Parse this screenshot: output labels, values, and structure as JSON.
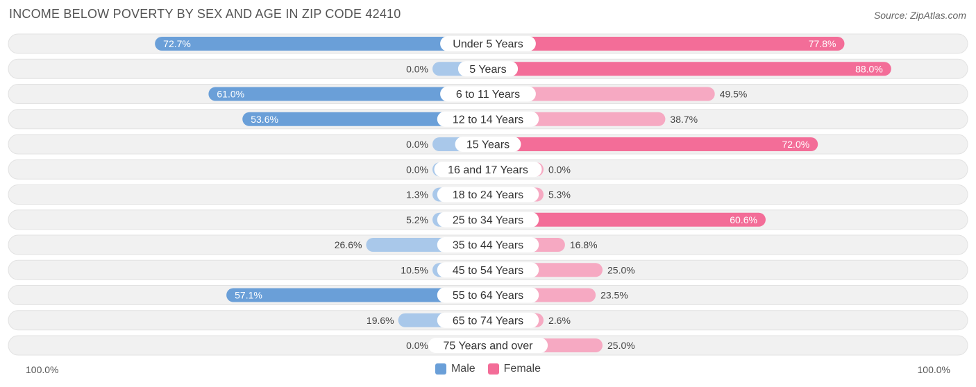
{
  "header": {
    "title": "INCOME BELOW POVERTY BY SEX AND AGE IN ZIP CODE 42410",
    "source": "Source: ZipAtlas.com"
  },
  "axis": {
    "left_label": "100.0%",
    "right_label": "100.0%"
  },
  "legend": {
    "male_label": "Male",
    "female_label": "Female"
  },
  "colors": {
    "male_strong": "#6a9fd8",
    "male_light": "#a9c8ea",
    "female_strong": "#f36d98",
    "female_light": "#f6a9c2",
    "track": "#f1f1f1"
  },
  "chart_data": {
    "type": "bar",
    "title": "INCOME BELOW POVERTY BY SEX AND AGE IN ZIP CODE 42410",
    "orientation": "horizontal-diverging",
    "xlim": [
      -100,
      100
    ],
    "categories": [
      "Under 5 Years",
      "5 Years",
      "6 to 11 Years",
      "12 to 14 Years",
      "15 Years",
      "16 and 17 Years",
      "18 to 24 Years",
      "25 to 34 Years",
      "35 to 44 Years",
      "45 to 54 Years",
      "55 to 64 Years",
      "65 to 74 Years",
      "75 Years and over"
    ],
    "series": [
      {
        "name": "Male",
        "values": [
          72.7,
          0.0,
          61.0,
          53.6,
          0.0,
          0.0,
          1.3,
          5.2,
          26.6,
          10.5,
          57.1,
          19.6,
          0.0
        ],
        "labels": [
          "72.7%",
          "0.0%",
          "61.0%",
          "53.6%",
          "0.0%",
          "0.0%",
          "1.3%",
          "5.2%",
          "26.6%",
          "10.5%",
          "57.1%",
          "19.6%",
          "0.0%"
        ]
      },
      {
        "name": "Female",
        "values": [
          77.8,
          88.0,
          49.5,
          38.7,
          72.0,
          0.0,
          5.3,
          60.6,
          16.8,
          25.0,
          23.5,
          2.6,
          25.0
        ],
        "labels": [
          "77.8%",
          "88.0%",
          "49.5%",
          "38.7%",
          "72.0%",
          "0.0%",
          "5.3%",
          "60.6%",
          "16.8%",
          "25.0%",
          "23.5%",
          "2.6%",
          "25.0%"
        ]
      }
    ],
    "legend_position": "bottom-center"
  }
}
